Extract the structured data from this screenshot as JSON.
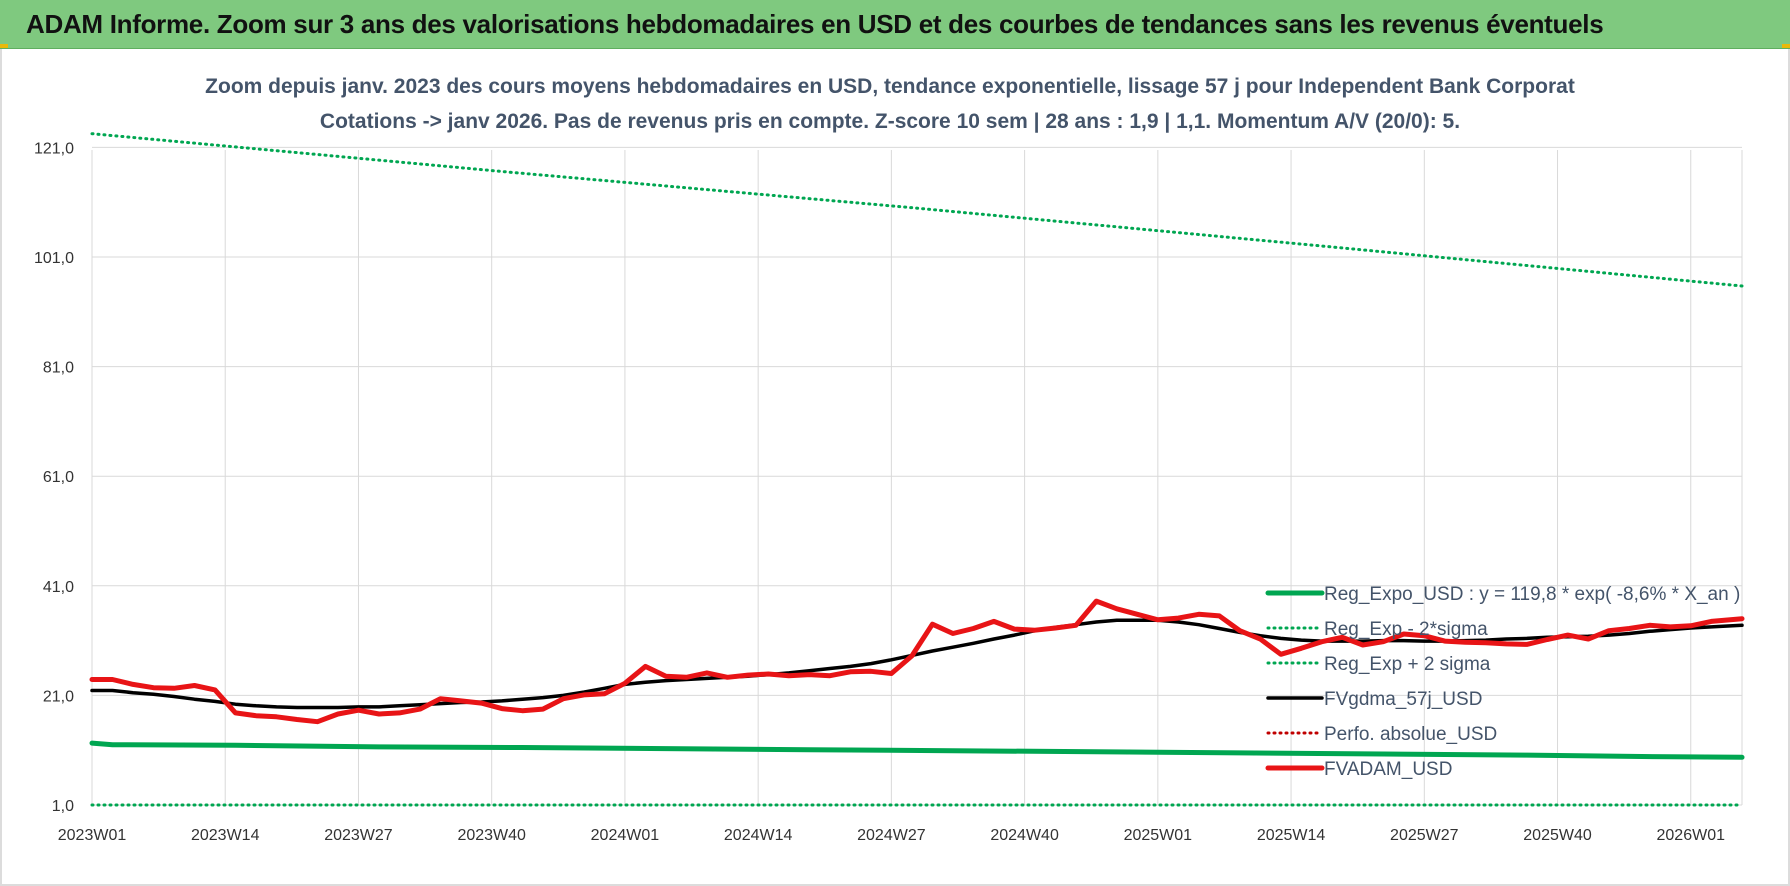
{
  "banner": {
    "title": "ADAM Informe. Zoom sur 3 ans des valorisations hebdomadaires en USD et des courbes de tendances sans les revenus éventuels"
  },
  "chart_data": {
    "type": "line",
    "title_line1": "Zoom depuis janv. 2023 des cours moyens hebdomadaires en USD, tendance exponentielle, lissage 57 j pour Independent Bank Corporat",
    "title_line2": "Cotations -> janv 2026. Pas de revenus pris en compte. Z-score 10 sem | 28 ans : 1,9 | 1,1. Momentum A/V (20/0): 5.",
    "ylim": [
      1.0,
      126.0
    ],
    "y_ticks": [
      "1,0",
      "21,0",
      "41,0",
      "61,0",
      "81,0",
      "101,0",
      "121,0"
    ],
    "y_tick_values": [
      1,
      21,
      41,
      61,
      81,
      101,
      121
    ],
    "x_ticks": [
      "2023W01",
      "2023W14",
      "2023W27",
      "2023W40",
      "2024W01",
      "2024W14",
      "2024W27",
      "2024W40",
      "2025W01",
      "2025W14",
      "2025W27",
      "2025W40",
      "2026W01"
    ],
    "x_tick_index": [
      0,
      13,
      26,
      39,
      52,
      65,
      78,
      91,
      104,
      117,
      130,
      143,
      156
    ],
    "n_weeks": 162,
    "grid": true,
    "legend_position": "bottom-right",
    "colors": {
      "reg_expo": "#00a651",
      "reg_band": "#00a651",
      "fvgdma": "#000000",
      "perfo": "#c00000",
      "fvadam": "#e81416",
      "grid": "#d9d9d9",
      "title": "#44546a"
    },
    "series": [
      {
        "name": "Reg_Expo_USD : y = 119,8 * exp( -8,6% *  X_an )",
        "style": "solid-thick",
        "color": "#00a651",
        "x": [
          0,
          2,
          14,
          28,
          42,
          56,
          70,
          84,
          98,
          112,
          126,
          140,
          154,
          161
        ],
        "y": [
          12.3,
          12.0,
          11.9,
          11.6,
          11.5,
          11.3,
          11.1,
          10.9,
          10.7,
          10.5,
          10.3,
          10.1,
          9.8,
          9.7
        ]
      },
      {
        "name": "Reg_Exp - 2*sigma",
        "style": "dotted",
        "color": "#00a651",
        "x": [
          0,
          161
        ],
        "y": [
          1.0,
          1.0
        ]
      },
      {
        "name": "Reg_Exp + 2 sigma",
        "style": "dotted",
        "color": "#00a651",
        "x": [
          0,
          40,
          80,
          120,
          161
        ],
        "y": [
          123.5,
          116.6,
          110.0,
          103.0,
          95.7
        ]
      },
      {
        "name": "FVgdma_57j_USD",
        "style": "solid",
        "color": "#000000",
        "x": [
          0,
          2,
          4,
          6,
          8,
          10,
          12,
          14,
          16,
          18,
          20,
          22,
          24,
          26,
          28,
          30,
          32,
          34,
          36,
          38,
          40,
          42,
          44,
          46,
          48,
          50,
          52,
          54,
          56,
          58,
          60,
          62,
          64,
          66,
          68,
          70,
          72,
          74,
          76,
          78,
          80,
          82,
          84,
          86,
          88,
          90,
          92,
          94,
          96,
          98,
          100,
          102,
          104,
          106,
          108,
          110,
          112,
          114,
          116,
          118,
          120,
          122,
          124,
          126,
          128,
          130,
          132,
          134,
          136,
          138,
          140,
          142,
          144,
          146,
          148,
          150,
          152,
          154,
          156,
          158,
          161
        ],
        "y": [
          21.9,
          21.9,
          21.5,
          21.2,
          20.8,
          20.3,
          19.9,
          19.4,
          19.1,
          18.9,
          18.8,
          18.8,
          18.8,
          18.9,
          18.9,
          19.1,
          19.3,
          19.5,
          19.7,
          19.8,
          20.0,
          20.3,
          20.6,
          21.0,
          21.6,
          22.3,
          23.0,
          23.4,
          23.7,
          23.9,
          24.1,
          24.3,
          24.5,
          24.8,
          25.1,
          25.5,
          25.9,
          26.3,
          26.8,
          27.5,
          28.3,
          29.1,
          29.8,
          30.5,
          31.3,
          32.0,
          32.8,
          33.4,
          33.9,
          34.4,
          34.7,
          34.7,
          34.7,
          34.4,
          33.9,
          33.2,
          32.5,
          31.9,
          31.4,
          31.1,
          30.9,
          30.9,
          30.9,
          31.0,
          31.0,
          30.9,
          30.9,
          31.0,
          31.1,
          31.3,
          31.4,
          31.6,
          31.7,
          31.8,
          32.0,
          32.3,
          32.7,
          33.0,
          33.3,
          33.5,
          33.8
        ]
      },
      {
        "name": "Perfo. absolue_USD",
        "style": "dotted",
        "color": "#c00000",
        "x": [],
        "y": []
      },
      {
        "name": "FVADAM_USD",
        "style": "solid-thick",
        "color": "#e81416",
        "x": [
          0,
          2,
          4,
          6,
          8,
          10,
          12,
          14,
          16,
          18,
          20,
          22,
          24,
          26,
          28,
          30,
          32,
          34,
          36,
          38,
          40,
          42,
          44,
          46,
          48,
          50,
          52,
          54,
          56,
          58,
          60,
          62,
          64,
          66,
          68,
          70,
          72,
          74,
          76,
          78,
          80,
          82,
          84,
          86,
          88,
          90,
          92,
          94,
          96,
          98,
          100,
          102,
          104,
          106,
          108,
          110,
          112,
          114,
          116,
          118,
          120,
          122,
          124,
          126,
          128,
          130,
          132,
          134,
          136,
          138,
          140,
          142,
          144,
          146,
          148,
          150,
          152,
          154,
          156,
          158,
          161
        ],
        "y": [
          23.9,
          23.9,
          23.0,
          22.4,
          22.3,
          22.8,
          22.0,
          17.8,
          17.3,
          17.1,
          16.6,
          16.2,
          17.6,
          18.3,
          17.6,
          17.8,
          18.5,
          20.4,
          20.0,
          19.6,
          18.6,
          18.2,
          18.5,
          20.4,
          21.1,
          21.3,
          23.2,
          26.3,
          24.5,
          24.3,
          25.1,
          24.3,
          24.7,
          24.9,
          24.6,
          24.8,
          24.6,
          25.3,
          25.4,
          25.0,
          28.2,
          34.0,
          32.3,
          33.2,
          34.5,
          33.1,
          32.9,
          33.3,
          33.8,
          38.2,
          36.8,
          35.8,
          34.8,
          35.1,
          35.8,
          35.5,
          32.8,
          31.3,
          28.5,
          29.6,
          30.8,
          31.6,
          30.2,
          30.8,
          32.2,
          31.9,
          30.9,
          30.7,
          30.6,
          30.4,
          30.3,
          31.2,
          32.0,
          31.3,
          32.8,
          33.2,
          33.8,
          33.5,
          33.7,
          34.5,
          35.0
        ]
      }
    ]
  }
}
